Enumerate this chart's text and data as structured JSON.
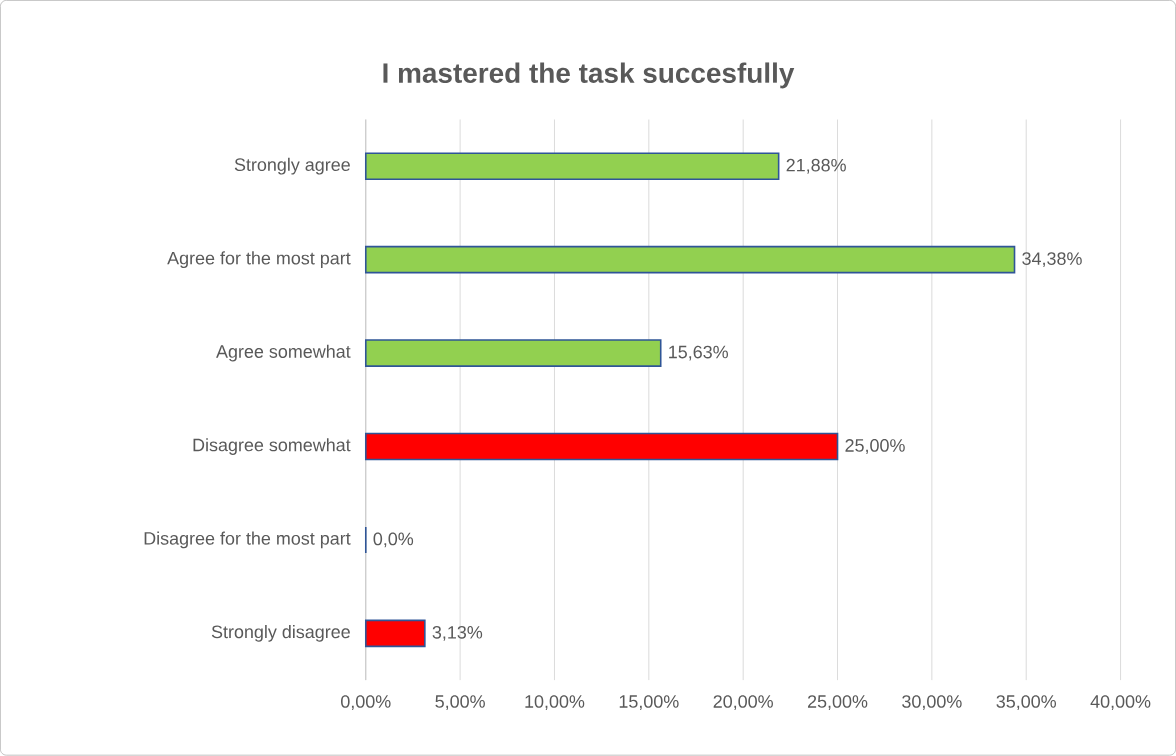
{
  "chart_data": {
    "type": "bar",
    "orientation": "horizontal",
    "title": "I mastered the task succesfully",
    "categories": [
      "Strongly agree",
      "Agree for the most part",
      "Agree somewhat",
      "Disagree somewhat",
      "Disagree for the most part",
      "Strongly disagree"
    ],
    "values": [
      21.88,
      34.38,
      15.63,
      25.0,
      0.0,
      3.13
    ],
    "value_labels": [
      "21,88%",
      "34,38%",
      "15,63%",
      "25,00%",
      "0,0%",
      "3,13%"
    ],
    "colors": [
      "#92d050",
      "#92d050",
      "#92d050",
      "#ff0000",
      "#ff0000",
      "#ff0000"
    ],
    "xlim": [
      0,
      40
    ],
    "xticks": [
      {
        "value": 0,
        "label": "0,00%"
      },
      {
        "value": 5,
        "label": "5,00%"
      },
      {
        "value": 10,
        "label": "10,00%"
      },
      {
        "value": 15,
        "label": "15,00%"
      },
      {
        "value": 20,
        "label": "20,00%"
      },
      {
        "value": 25,
        "label": "25,00%"
      },
      {
        "value": 30,
        "label": "30,00%"
      },
      {
        "value": 35,
        "label": "35,00%"
      },
      {
        "value": 40,
        "label": "40,00%"
      }
    ],
    "grid": "x"
  }
}
